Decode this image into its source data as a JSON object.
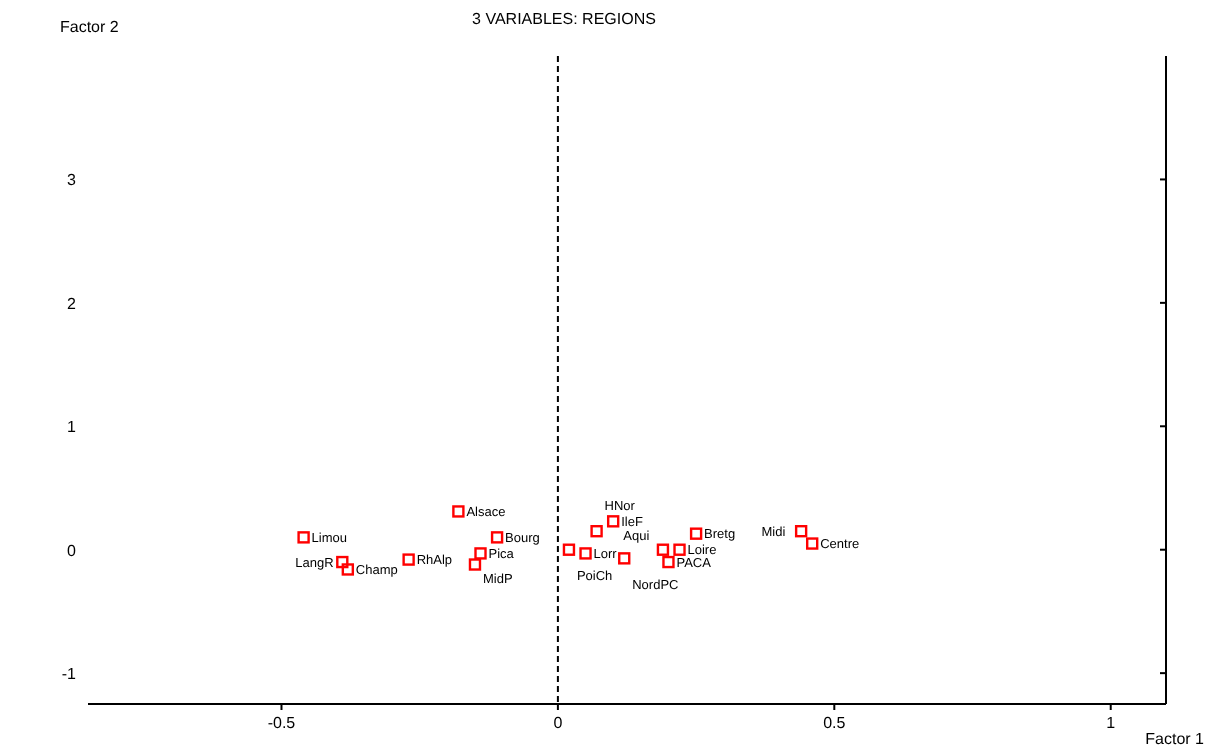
{
  "chart_data": {
    "type": "scatter",
    "title": "3 VARIABLES: REGIONS",
    "xlabel": "Factor 1",
    "ylabel": "Factor 2",
    "xlim": [
      -0.85,
      1.1
    ],
    "ylim": [
      -1.25,
      4
    ],
    "xticks": [
      -0.5,
      0,
      0.5,
      1
    ],
    "yticks": [
      -1,
      0,
      1,
      2,
      3
    ],
    "grid": false,
    "marker": "square",
    "ref_lines": [
      {
        "axis": "x",
        "value": 0,
        "line_style": "dashed",
        "color": "#000000"
      }
    ],
    "series": [
      {
        "color": "#ff0000",
        "x": [
          -0.46,
          -0.39,
          -0.38,
          -0.27,
          -0.18,
          -0.11,
          -0.14,
          -0.15,
          0.02,
          0.05,
          0.07,
          0.1,
          0.12,
          0.19,
          0.22,
          0.2,
          0.25,
          0.44,
          0.46
        ],
        "values": [
          0.1,
          -0.1,
          -0.16,
          -0.08,
          0.31,
          0.1,
          -0.03,
          -0.12,
          0,
          -0.03,
          0.15,
          0.23,
          -0.07,
          0,
          0,
          -0.1,
          0.13,
          0.15,
          0.05
        ]
      }
    ],
    "annotations": [
      {
        "text": "Limou",
        "x": -0.46,
        "y": 0.1
      },
      {
        "text": "LangR",
        "x": -0.39,
        "y": -0.1
      },
      {
        "text": "Champ",
        "x": -0.38,
        "y": -0.16
      },
      {
        "text": "RhAlp",
        "x": -0.27,
        "y": -0.08
      },
      {
        "text": "Alsace",
        "x": -0.18,
        "y": 0.31
      },
      {
        "text": "Bourg",
        "x": -0.11,
        "y": 0.1
      },
      {
        "text": "Pica",
        "x": -0.14,
        "y": -0.03
      },
      {
        "text": "MidP",
        "x": -0.15,
        "y": -0.12
      },
      {
        "text": "PoiCh",
        "x": 0.02,
        "y": 0
      },
      {
        "text": "Lorr",
        "x": 0.05,
        "y": -0.03
      },
      {
        "text": "HNor",
        "x": 0.07,
        "y": 0.15
      },
      {
        "text": "IleF",
        "x": 0.1,
        "y": 0.23
      },
      {
        "text": "NordPC",
        "x": 0.12,
        "y": -0.07
      },
      {
        "text": "Aqui",
        "x": 0.19,
        "y": 0
      },
      {
        "text": "Loire",
        "x": 0.22,
        "y": 0
      },
      {
        "text": "PACA",
        "x": 0.2,
        "y": -0.1
      },
      {
        "text": "Bretg",
        "x": 0.25,
        "y": 0.13
      },
      {
        "text": "Midi",
        "x": 0.44,
        "y": 0.15
      },
      {
        "text": "Centre",
        "x": 0.46,
        "y": 0.05
      }
    ]
  }
}
